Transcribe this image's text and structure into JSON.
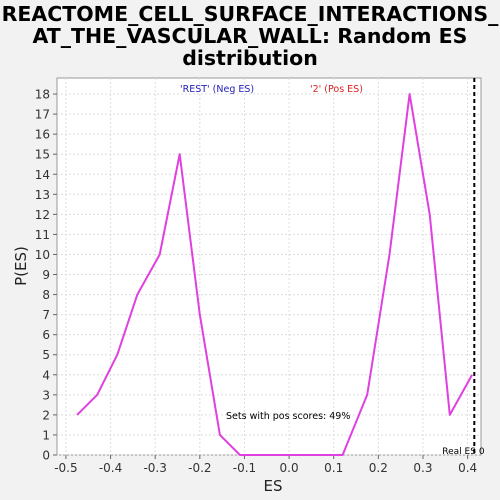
{
  "chart_data": {
    "type": "line",
    "title_lines": [
      "REACTOME_CELL_SURFACE_INTERACTIONS_",
      "AT_THE_VASCULAR_WALL: Random ES",
      "distribution"
    ],
    "xlabel": "ES",
    "ylabel": "P(ES)",
    "xlim": [
      -0.52,
      0.43
    ],
    "ylim": [
      0,
      18.8
    ],
    "xticks": [
      -0.5,
      -0.4,
      -0.3,
      -0.2,
      -0.1,
      0.0,
      0.1,
      0.2,
      0.3,
      0.4
    ],
    "xtick_labels": [
      "-0.5",
      "-0.4",
      "-0.3",
      "-0.2",
      "-0.1",
      "0.0",
      "0.1",
      "0.2",
      "0.3",
      "0.4"
    ],
    "yticks": [
      0,
      1,
      2,
      3,
      4,
      5,
      6,
      7,
      8,
      9,
      10,
      11,
      12,
      13,
      14,
      15,
      16,
      17,
      18
    ],
    "grid": true,
    "series": [
      {
        "color": "#e040e0",
        "x": [
          -0.475,
          -0.43,
          -0.385,
          -0.34,
          -0.29,
          -0.245,
          -0.2,
          -0.155,
          -0.11,
          -0.065,
          -0.02,
          0.025,
          0.07,
          0.12,
          0.175,
          0.225,
          0.27,
          0.315,
          0.36,
          0.41
        ],
        "y": [
          2,
          3,
          5,
          8,
          10,
          15,
          7,
          1,
          0,
          0,
          0,
          0,
          0,
          0,
          3,
          10,
          18,
          12,
          2,
          4
        ]
      }
    ],
    "legend": [
      {
        "label": "'REST' (Neg ES)",
        "color": "#2222bb"
      },
      {
        "label": "'2' (Pos ES)",
        "color": "#dd2222"
      }
    ],
    "real_es_x": 0.415,
    "real_es_label": "Real ES 0",
    "annotation": "Sets with pos scores: 49%"
  }
}
